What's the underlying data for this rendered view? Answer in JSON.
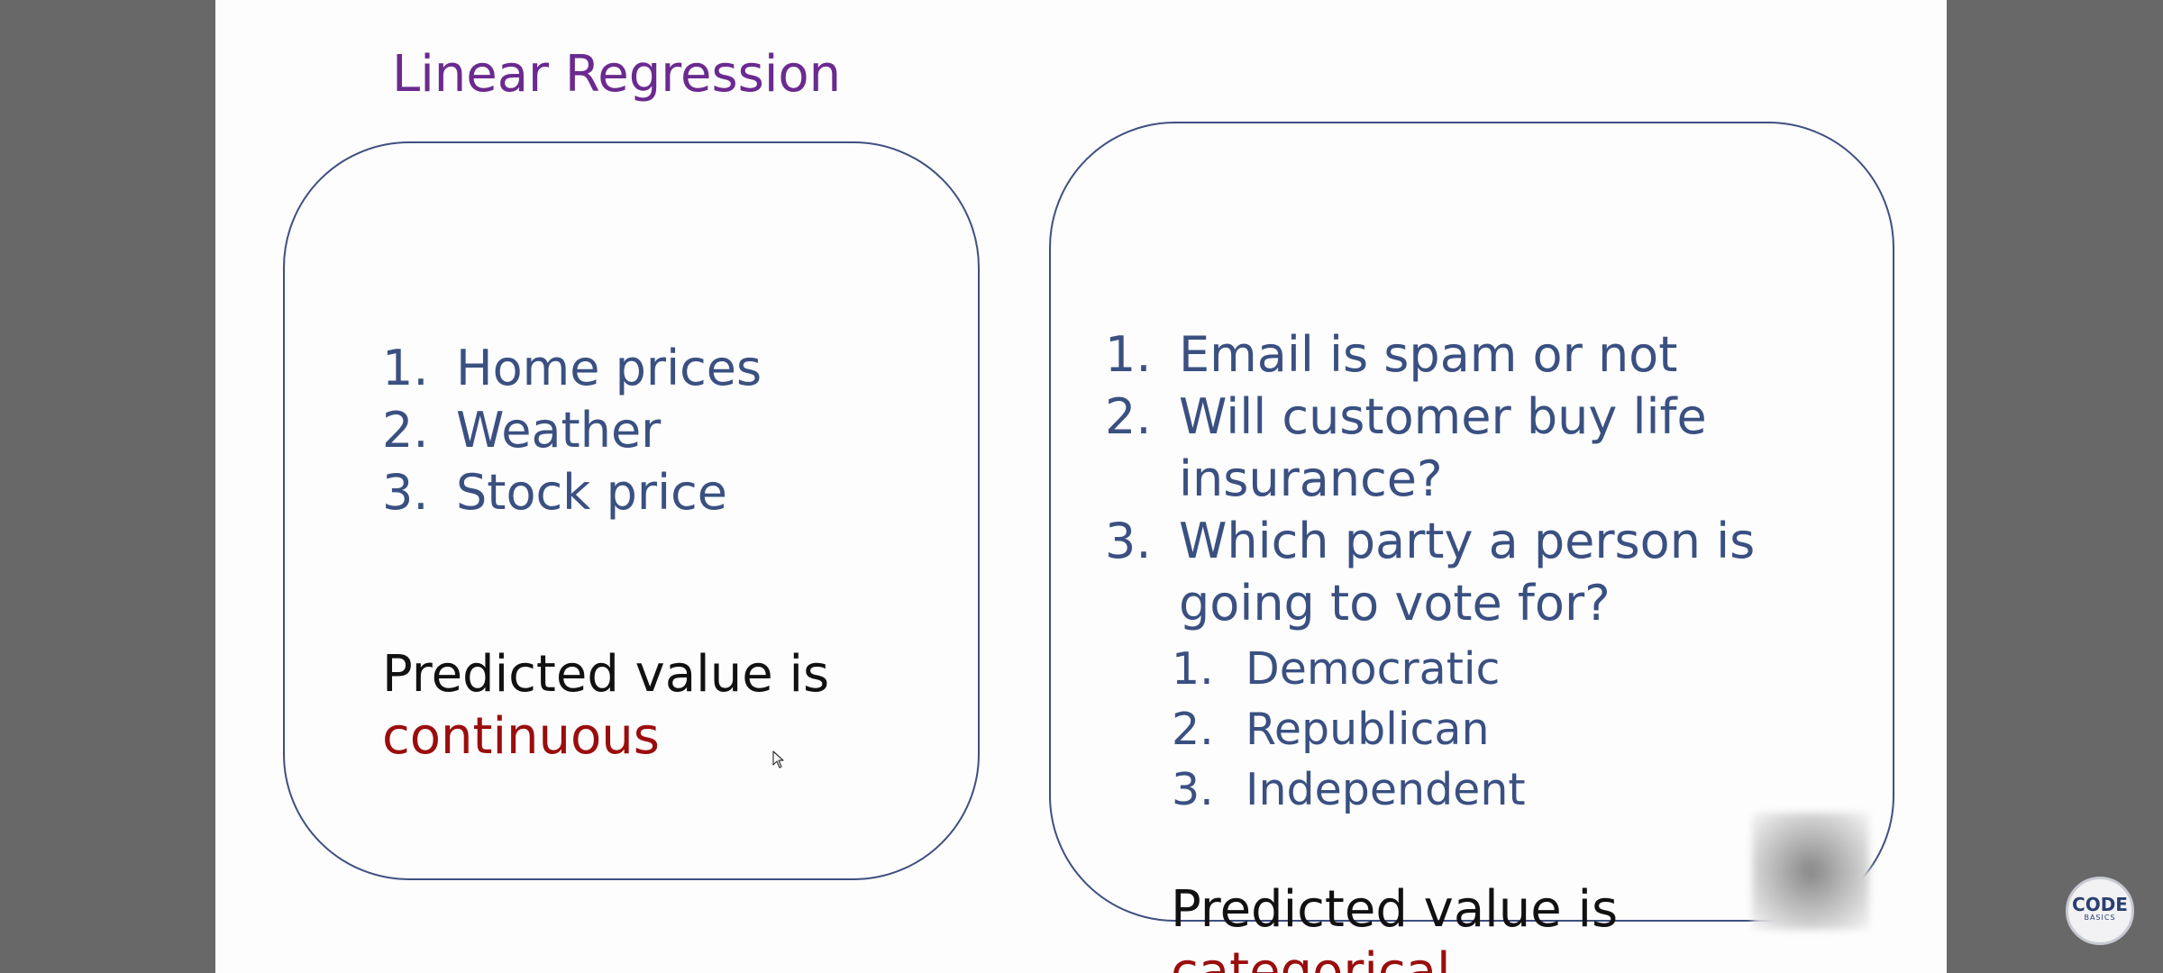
{
  "slide": {
    "title": "Linear Regression",
    "left_panel": {
      "items": [
        {
          "num": "1.",
          "text": "Home prices"
        },
        {
          "num": "2.",
          "text": "Weather"
        },
        {
          "num": "3.",
          "text": "Stock price"
        }
      ],
      "predicted_prefix": "Predicted value is",
      "predicted_value": "continuous"
    },
    "right_panel": {
      "items": [
        {
          "num": "1.",
          "text": "Email is spam or not"
        },
        {
          "num": "2.",
          "text": "Will customer buy life insurance?"
        },
        {
          "num": "3.",
          "text": "Which party a person is going to vote for?"
        }
      ],
      "subitems": [
        {
          "num": "1.",
          "text": "Democratic"
        },
        {
          "num": "2.",
          "text": "Republican"
        },
        {
          "num": "3.",
          "text": "Independent"
        }
      ],
      "predicted_prefix": "Predicted value is",
      "predicted_value": "categorical"
    }
  },
  "watermark": {
    "logo_main": "CODE",
    "logo_sub": "BASICS"
  },
  "colors": {
    "title": "#6b2a8f",
    "list_text": "#3a5081",
    "accent": "#9b0d0d",
    "panel_border": "#3f4f80",
    "backdrop": "#686868"
  },
  "icons": {
    "cursor": "mouse-pointer-icon",
    "logo": "codebasics-logo-icon"
  }
}
